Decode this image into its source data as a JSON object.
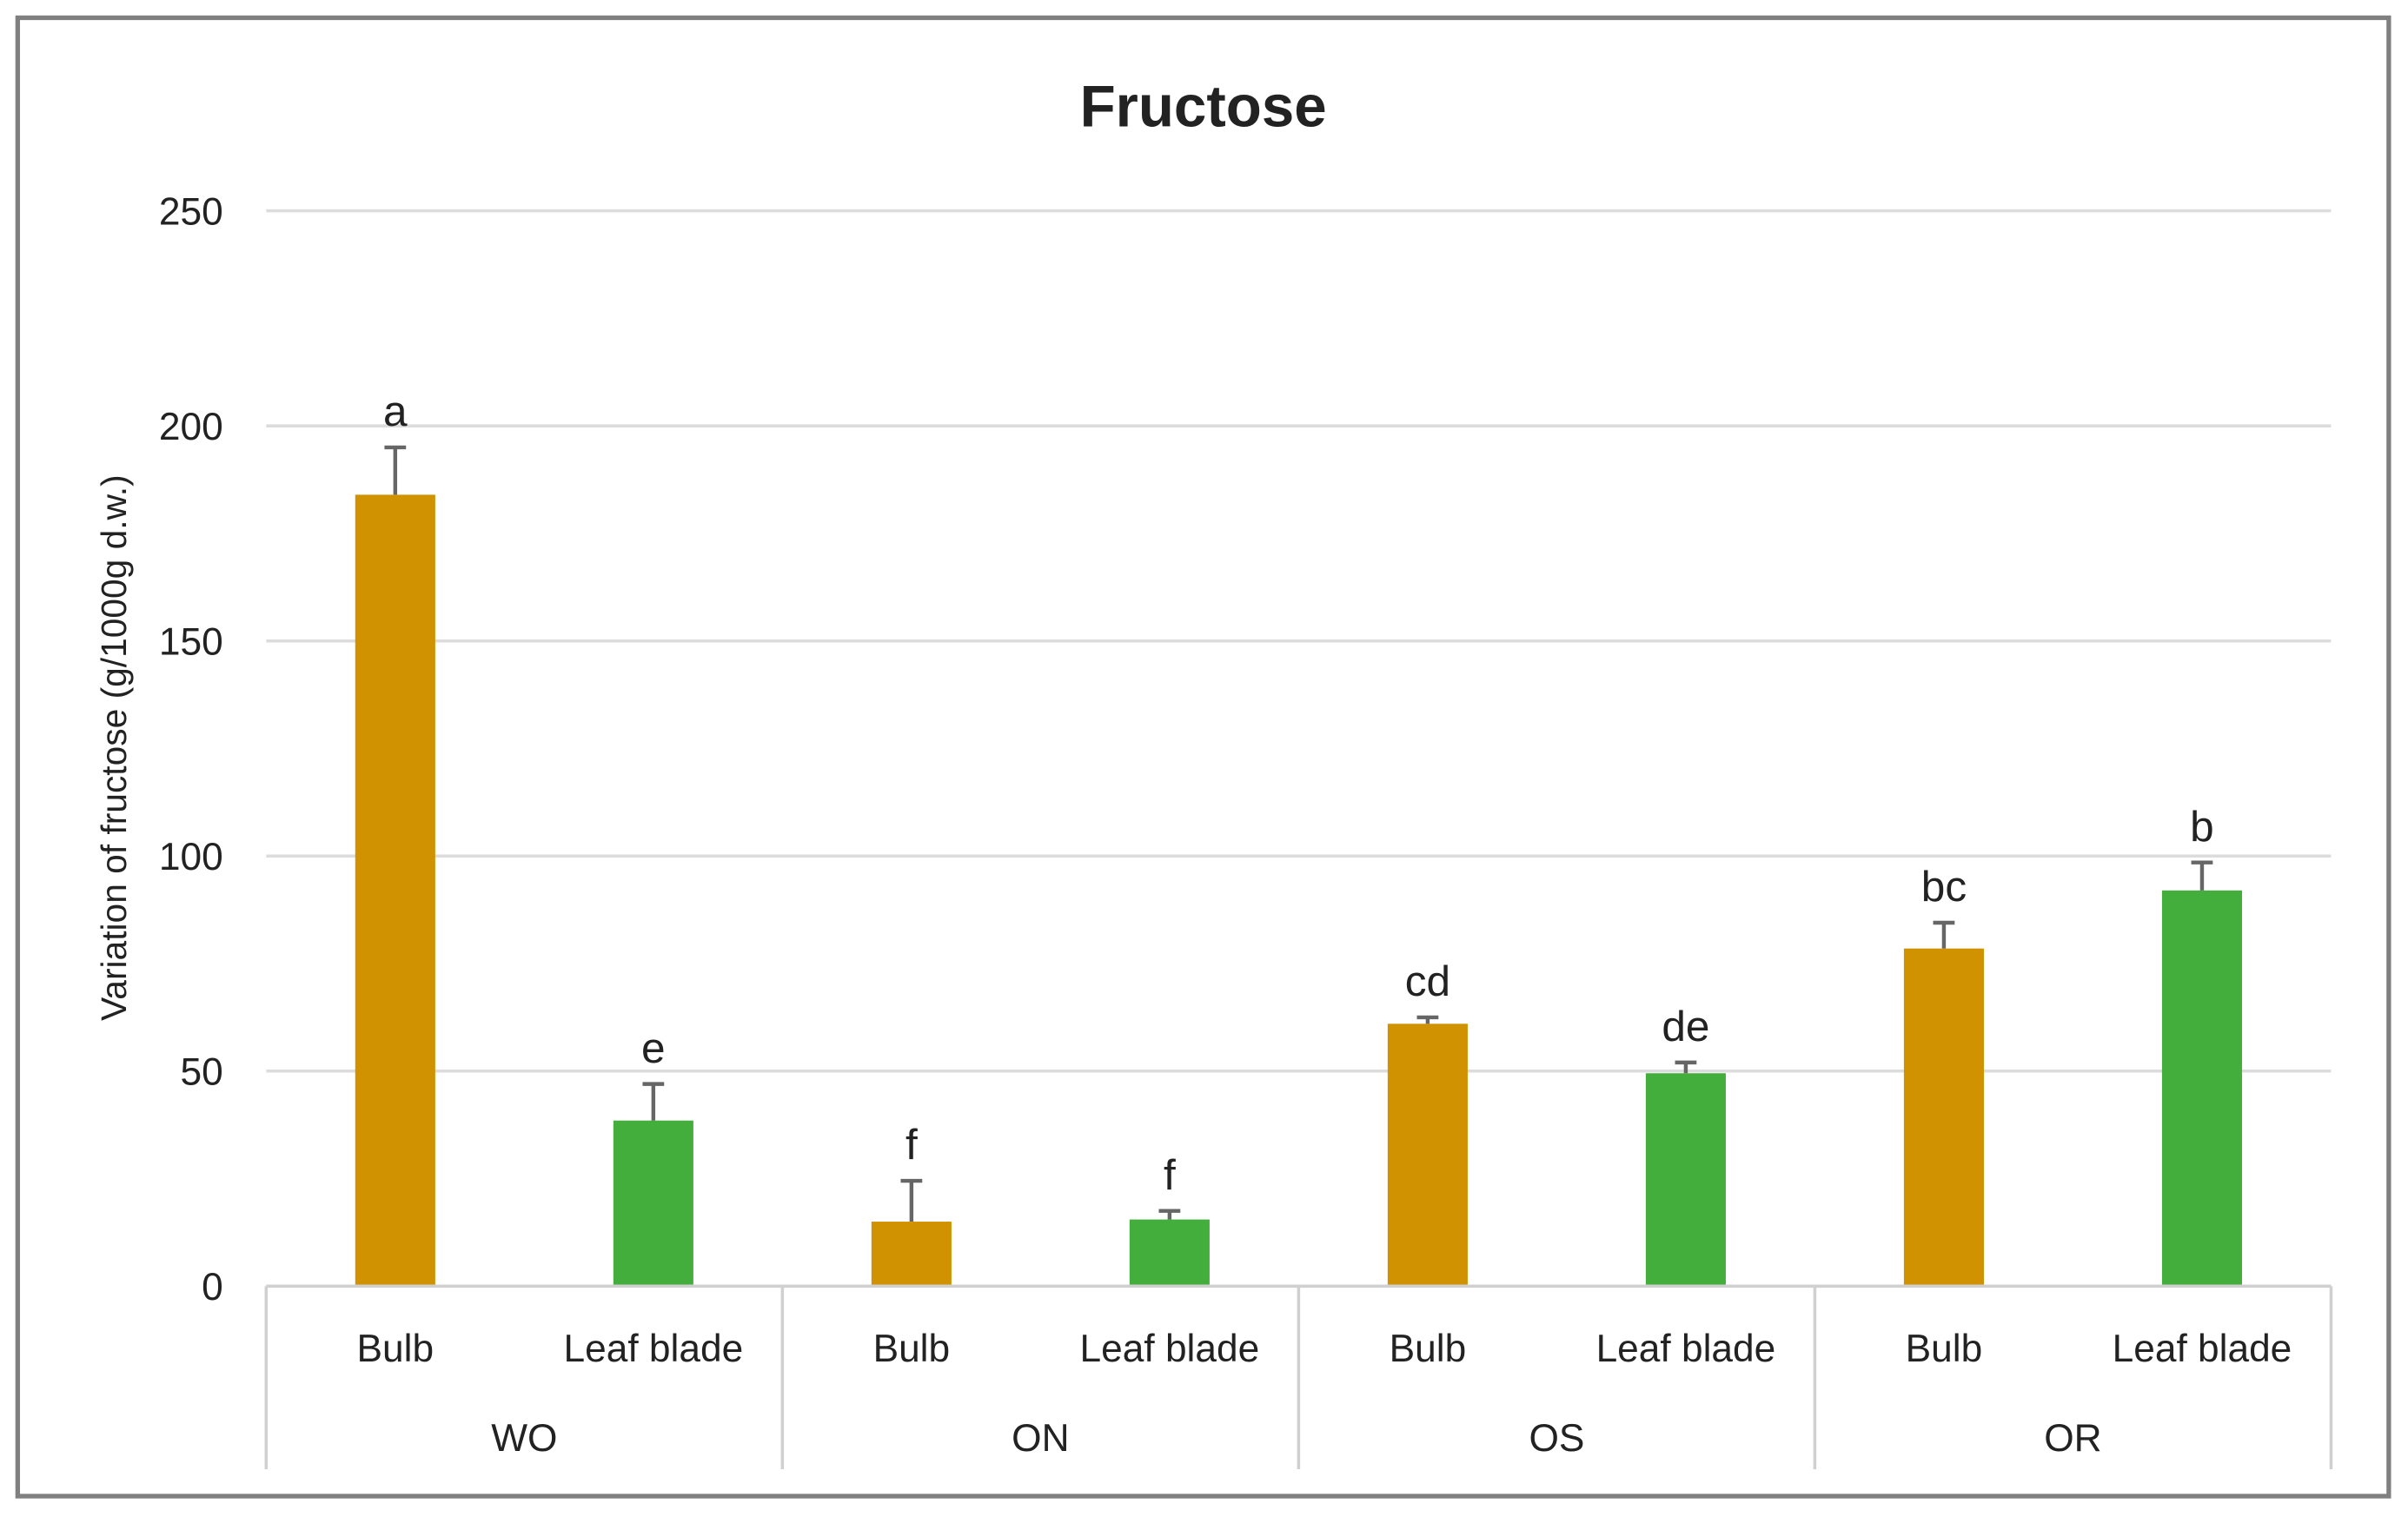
{
  "chart_data": {
    "type": "bar",
    "title": "Fructose",
    "xlabel": "",
    "ylabel": "Variation of fructose (g/1000g d.w.)",
    "ylim": [
      0,
      250
    ],
    "yticks": [
      "0",
      "50",
      "100",
      "150",
      "200",
      "250"
    ],
    "grid": true,
    "groups": [
      "WO",
      "ON",
      "OS",
      "OR"
    ],
    "categories": [
      "Bulb",
      "Leaf blade",
      "Bulb",
      "Leaf blade",
      "Bulb",
      "Leaf blade",
      "Bulb",
      "Leaf blade"
    ],
    "values": [
      184,
      38.5,
      15,
      15.5,
      61,
      49.5,
      78.5,
      92
    ],
    "errors": [
      11,
      8.5,
      9.5,
      2,
      1.5,
      2.5,
      6,
      6.5
    ],
    "letters": [
      "a",
      "e",
      "f",
      "f",
      "cd",
      "de",
      "bc",
      "b"
    ],
    "colors": {
      "Bulb": "#D09200",
      "Leaf blade": "#44AE3C",
      "error_bar": "#666666",
      "frame": "#808080"
    }
  }
}
